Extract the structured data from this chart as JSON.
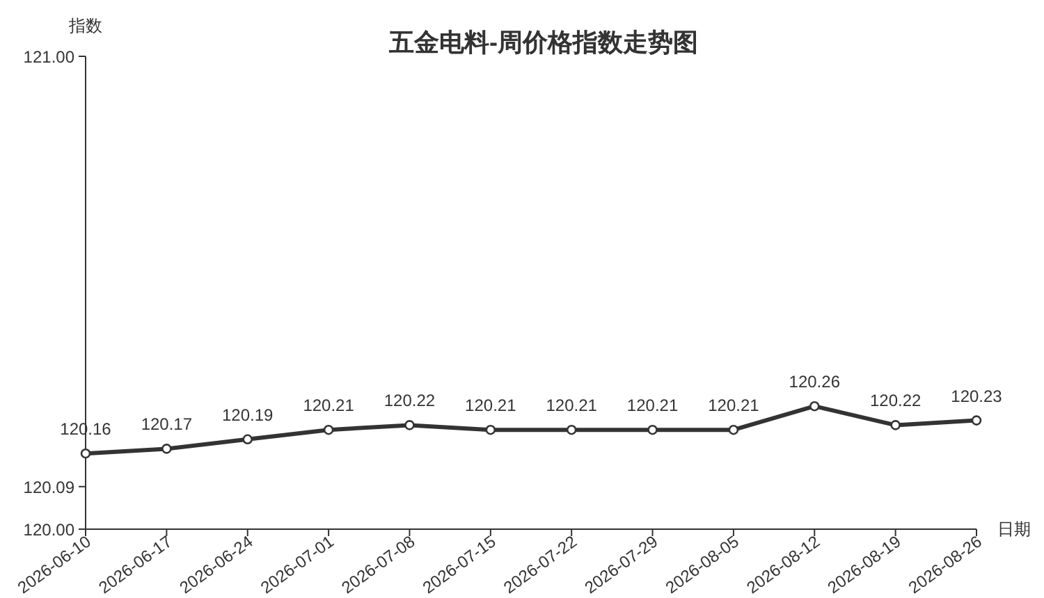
{
  "chart_data": {
    "type": "line",
    "title": "五金电料-周价格指数走势图",
    "xlabel": "日期",
    "ylabel": "指数",
    "categories": [
      "2026-06-10",
      "2026-06-17",
      "2026-06-24",
      "2026-07-01",
      "2026-07-08",
      "2026-07-15",
      "2026-07-22",
      "2026-07-29",
      "2026-08-05",
      "2026-08-12",
      "2026-08-19",
      "2026-08-26"
    ],
    "values": [
      120.16,
      120.17,
      120.19,
      120.21,
      120.22,
      120.21,
      120.21,
      120.21,
      120.21,
      120.26,
      120.22,
      120.23
    ],
    "color": "#333333",
    "ylim": [
      120,
      121
    ],
    "yticks": [
      {
        "value": 120,
        "label": "120.00"
      },
      {
        "value": 120.09,
        "label": "120.09"
      },
      {
        "value": 121,
        "label": "121.00"
      }
    ],
    "data_labels": true,
    "marker": "circle",
    "line_style": "solid"
  }
}
